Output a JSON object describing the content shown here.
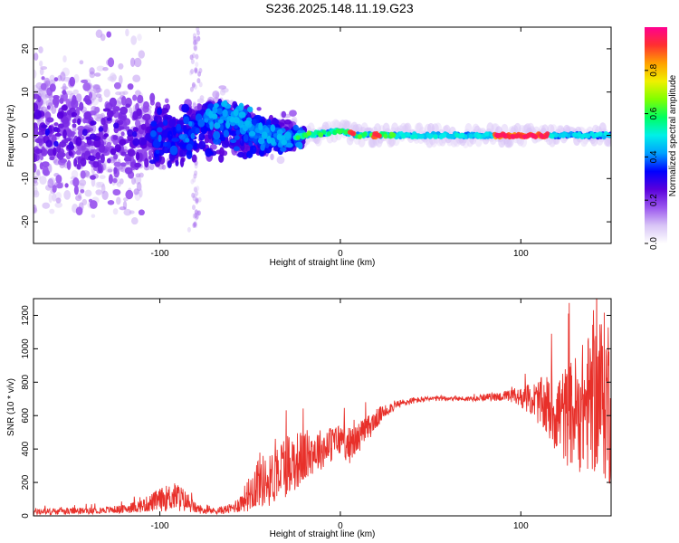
{
  "title": "S236.2025.148.11.19.G23",
  "chart_data": [
    {
      "type": "heatmap",
      "xlabel": "Height of straight line (km)",
      "ylabel": "Frequency (Hz)",
      "xlim": [
        -170,
        150
      ],
      "ylim": [
        -25,
        25
      ],
      "xticks": [
        -100,
        0,
        100
      ],
      "yticks": [
        -20,
        -10,
        0,
        10,
        20
      ],
      "colorbar": {
        "label": "Normalized spectral amplitude",
        "ticks": [
          0.0,
          0.2,
          0.4,
          0.6,
          0.8
        ],
        "range": [
          0,
          1
        ],
        "colormap": [
          "#ffffff",
          "#d8c4f6",
          "#9a55ee",
          "#5a00dc",
          "#0000ff",
          "#00a0ff",
          "#00f0e8",
          "#00ff60",
          "#80ff00",
          "#f0f000",
          "#ffa000",
          "#ff3030",
          "#ff0090"
        ]
      },
      "ridge": [
        {
          "x": -60,
          "f": 5
        },
        {
          "x": -40,
          "f": 0
        },
        {
          "x": -30,
          "f": -1
        },
        {
          "x": -20,
          "f": 0
        },
        {
          "x": 0,
          "f": 1
        },
        {
          "x": 10,
          "f": 0
        },
        {
          "x": 40,
          "f": 0
        },
        {
          "x": 80,
          "f": 0
        },
        {
          "x": 100,
          "f": 0
        },
        {
          "x": 130,
          "f": 0
        },
        {
          "x": 150,
          "f": 0
        }
      ]
    },
    {
      "type": "line",
      "xlabel": "Height of straight line (km)",
      "ylabel": "SNR (10 * v/v)",
      "xlim": [
        -170,
        150
      ],
      "ylim": [
        0,
        1300
      ],
      "xticks": [
        -100,
        0,
        100
      ],
      "yticks": [
        0,
        200,
        400,
        600,
        800,
        1000,
        1200
      ],
      "color": "#e8302a",
      "series": [
        {
          "x": [
            -170,
            -160,
            -150,
            -140,
            -130,
            -120,
            -110,
            -100,
            -95,
            -90,
            -85,
            -80,
            -75,
            -70,
            -65,
            -60,
            -55,
            -50,
            -45,
            -40,
            -35,
            -30,
            -25,
            -20,
            -15,
            -10,
            -5,
            0,
            5,
            10,
            15,
            20,
            25,
            30,
            40,
            50,
            60,
            70,
            80,
            90,
            100,
            105,
            110,
            115,
            120,
            125,
            130,
            135,
            140,
            145,
            150
          ],
          "values": [
            25,
            25,
            28,
            30,
            35,
            40,
            60,
            95,
            110,
            115,
            80,
            45,
            30,
            30,
            35,
            45,
            80,
            140,
            220,
            200,
            260,
            310,
            330,
            350,
            390,
            400,
            430,
            460,
            420,
            470,
            520,
            580,
            630,
            660,
            690,
            700,
            705,
            700,
            710,
            715,
            710,
            700,
            680,
            650,
            620,
            600,
            620,
            650,
            700,
            720,
            700
          ],
          "spread": [
            20,
            20,
            20,
            20,
            20,
            25,
            40,
            70,
            80,
            90,
            60,
            30,
            20,
            20,
            25,
            30,
            60,
            110,
            170,
            150,
            180,
            200,
            180,
            160,
            140,
            120,
            110,
            100,
            110,
            90,
            80,
            60,
            40,
            30,
            20,
            15,
            15,
            15,
            20,
            30,
            60,
            90,
            140,
            200,
            260,
            300,
            350,
            400,
            450,
            500,
            550
          ]
        }
      ]
    }
  ]
}
